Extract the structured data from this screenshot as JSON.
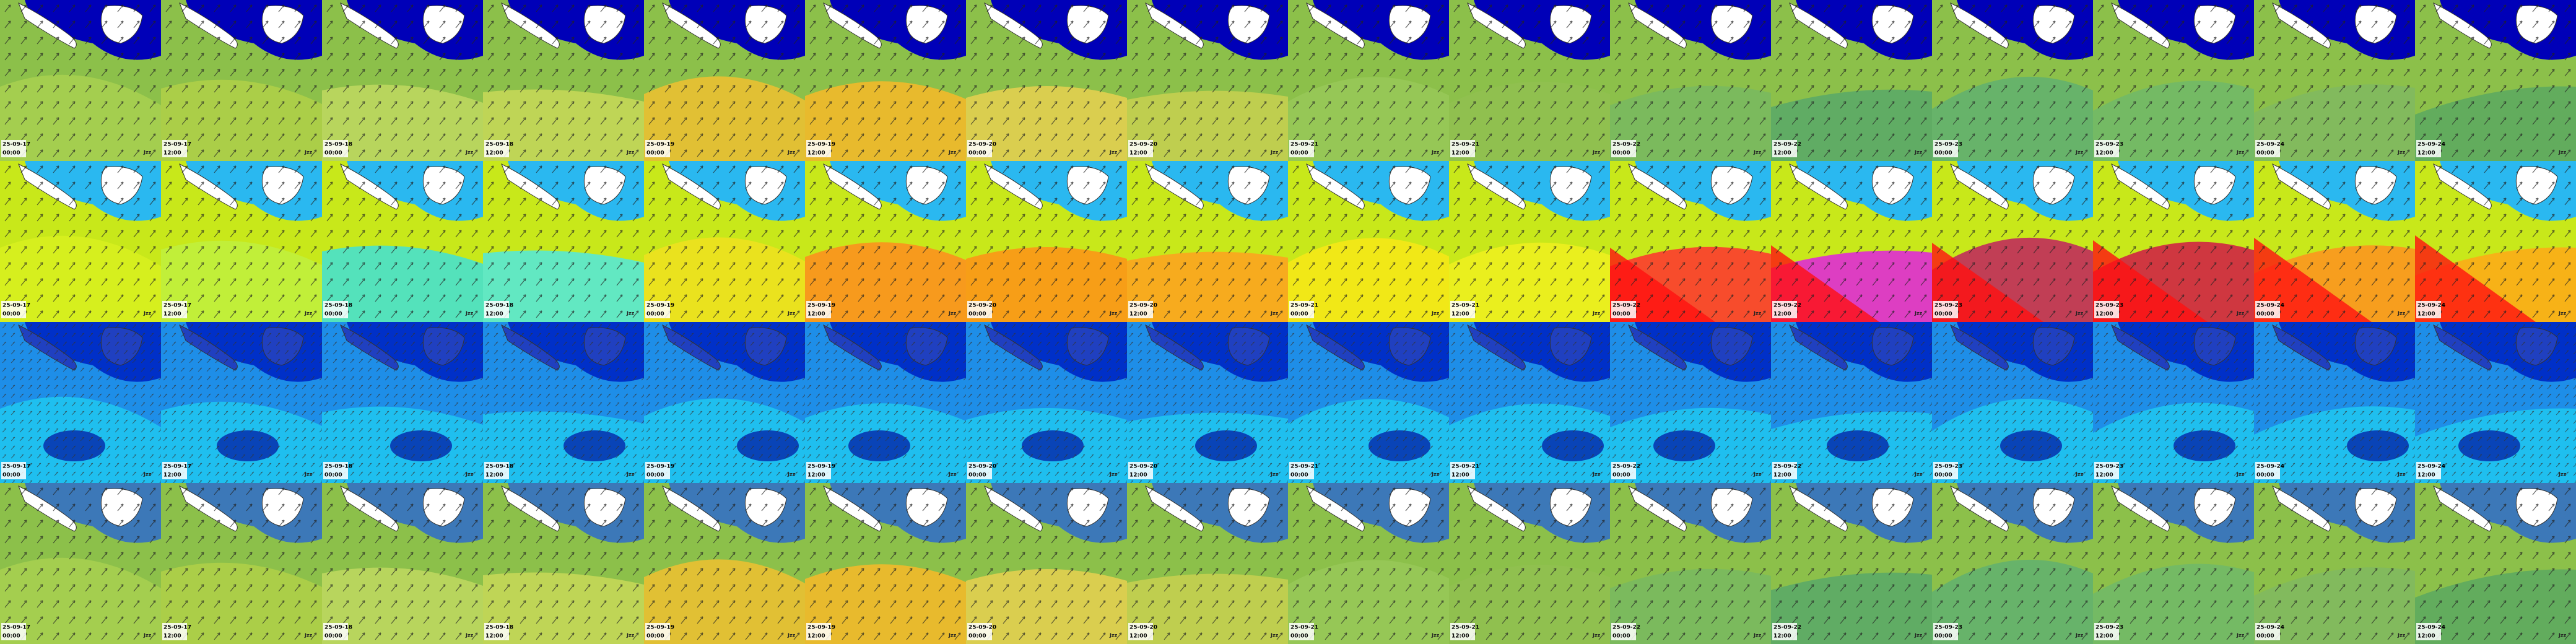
{
  "watermark": "Jzz",
  "rows": [
    {
      "tiles": [
        {
          "date": "25-09-17",
          "time": "00:00"
        },
        {
          "date": "25-09-17",
          "time": "12:00"
        },
        {
          "date": "25-09-18",
          "time": "00:00"
        },
        {
          "date": "25-09-18",
          "time": "12:00"
        },
        {
          "date": "25-09-19",
          "time": "00:00"
        },
        {
          "date": "25-09-19",
          "time": "12:00"
        },
        {
          "date": "25-09-20",
          "time": "00:00"
        },
        {
          "date": "25-09-20",
          "time": "12:00"
        },
        {
          "date": "25-09-21",
          "time": "00:00"
        },
        {
          "date": "25-09-21",
          "time": "12:00"
        },
        {
          "date": "25-09-22",
          "time": "00:00"
        },
        {
          "date": "25-09-22",
          "time": "12:00"
        },
        {
          "date": "25-09-23",
          "time": "00:00"
        },
        {
          "date": "25-09-23",
          "time": "12:00"
        },
        {
          "date": "25-09-24",
          "time": "00:00"
        },
        {
          "date": "25-09-24",
          "time": "12:00"
        }
      ]
    },
    {
      "tiles": [
        {
          "date": "25-09-17",
          "time": "00:00"
        },
        {
          "date": "25-09-17",
          "time": "12:00"
        },
        {
          "date": "25-09-18",
          "time": "00:00"
        },
        {
          "date": "25-09-18",
          "time": "12:00"
        },
        {
          "date": "25-09-19",
          "time": "00:00"
        },
        {
          "date": "25-09-19",
          "time": "12:00"
        },
        {
          "date": "25-09-20",
          "time": "00:00"
        },
        {
          "date": "25-09-20",
          "time": "12:00"
        },
        {
          "date": "25-09-21",
          "time": "00:00"
        },
        {
          "date": "25-09-21",
          "time": "12:00"
        },
        {
          "date": "25-09-22",
          "time": "00:00"
        },
        {
          "date": "25-09-22",
          "time": "12:00"
        },
        {
          "date": "25-09-23",
          "time": "00:00"
        },
        {
          "date": "25-09-23",
          "time": "12:00"
        },
        {
          "date": "25-09-24",
          "time": "00:00"
        },
        {
          "date": "25-09-24",
          "time": "12:00"
        }
      ]
    },
    {
      "tiles": [
        {
          "date": "25-09-17",
          "time": "00:00"
        },
        {
          "date": "25-09-17",
          "time": "12:00"
        },
        {
          "date": "25-09-18",
          "time": "00:00"
        },
        {
          "date": "25-09-18",
          "time": "12:00"
        },
        {
          "date": "25-09-19",
          "time": "00:00"
        },
        {
          "date": "25-09-19",
          "time": "12:00"
        },
        {
          "date": "25-09-20",
          "time": "00:00"
        },
        {
          "date": "25-09-20",
          "time": "12:00"
        },
        {
          "date": "25-09-21",
          "time": "00:00"
        },
        {
          "date": "25-09-21",
          "time": "12:00"
        },
        {
          "date": "25-09-22",
          "time": "00:00"
        },
        {
          "date": "25-09-22",
          "time": "12:00"
        },
        {
          "date": "25-09-23",
          "time": "00:00"
        },
        {
          "date": "25-09-23",
          "time": "12:00"
        },
        {
          "date": "25-09-24",
          "time": "00:00"
        },
        {
          "date": "25-09-24",
          "time": "12:00"
        }
      ]
    },
    {
      "tiles": [
        {
          "date": "25-09-17",
          "time": "00:00"
        },
        {
          "date": "25-09-17",
          "time": "12:00"
        },
        {
          "date": "25-09-18",
          "time": "00:00"
        },
        {
          "date": "25-09-18",
          "time": "12:00"
        },
        {
          "date": "25-09-19",
          "time": "00:00"
        },
        {
          "date": "25-09-19",
          "time": "12:00"
        },
        {
          "date": "25-09-20",
          "time": "00:00"
        },
        {
          "date": "25-09-20",
          "time": "12:00"
        },
        {
          "date": "25-09-21",
          "time": "00:00"
        },
        {
          "date": "25-09-21",
          "time": "12:00"
        },
        {
          "date": "25-09-22",
          "time": "00:00"
        },
        {
          "date": "25-09-22",
          "time": "12:00"
        },
        {
          "date": "25-09-23",
          "time": "00:00"
        },
        {
          "date": "25-09-23",
          "time": "12:00"
        },
        {
          "date": "25-09-24",
          "time": "00:00"
        },
        {
          "date": "25-09-24",
          "time": "12:00"
        }
      ]
    }
  ]
}
